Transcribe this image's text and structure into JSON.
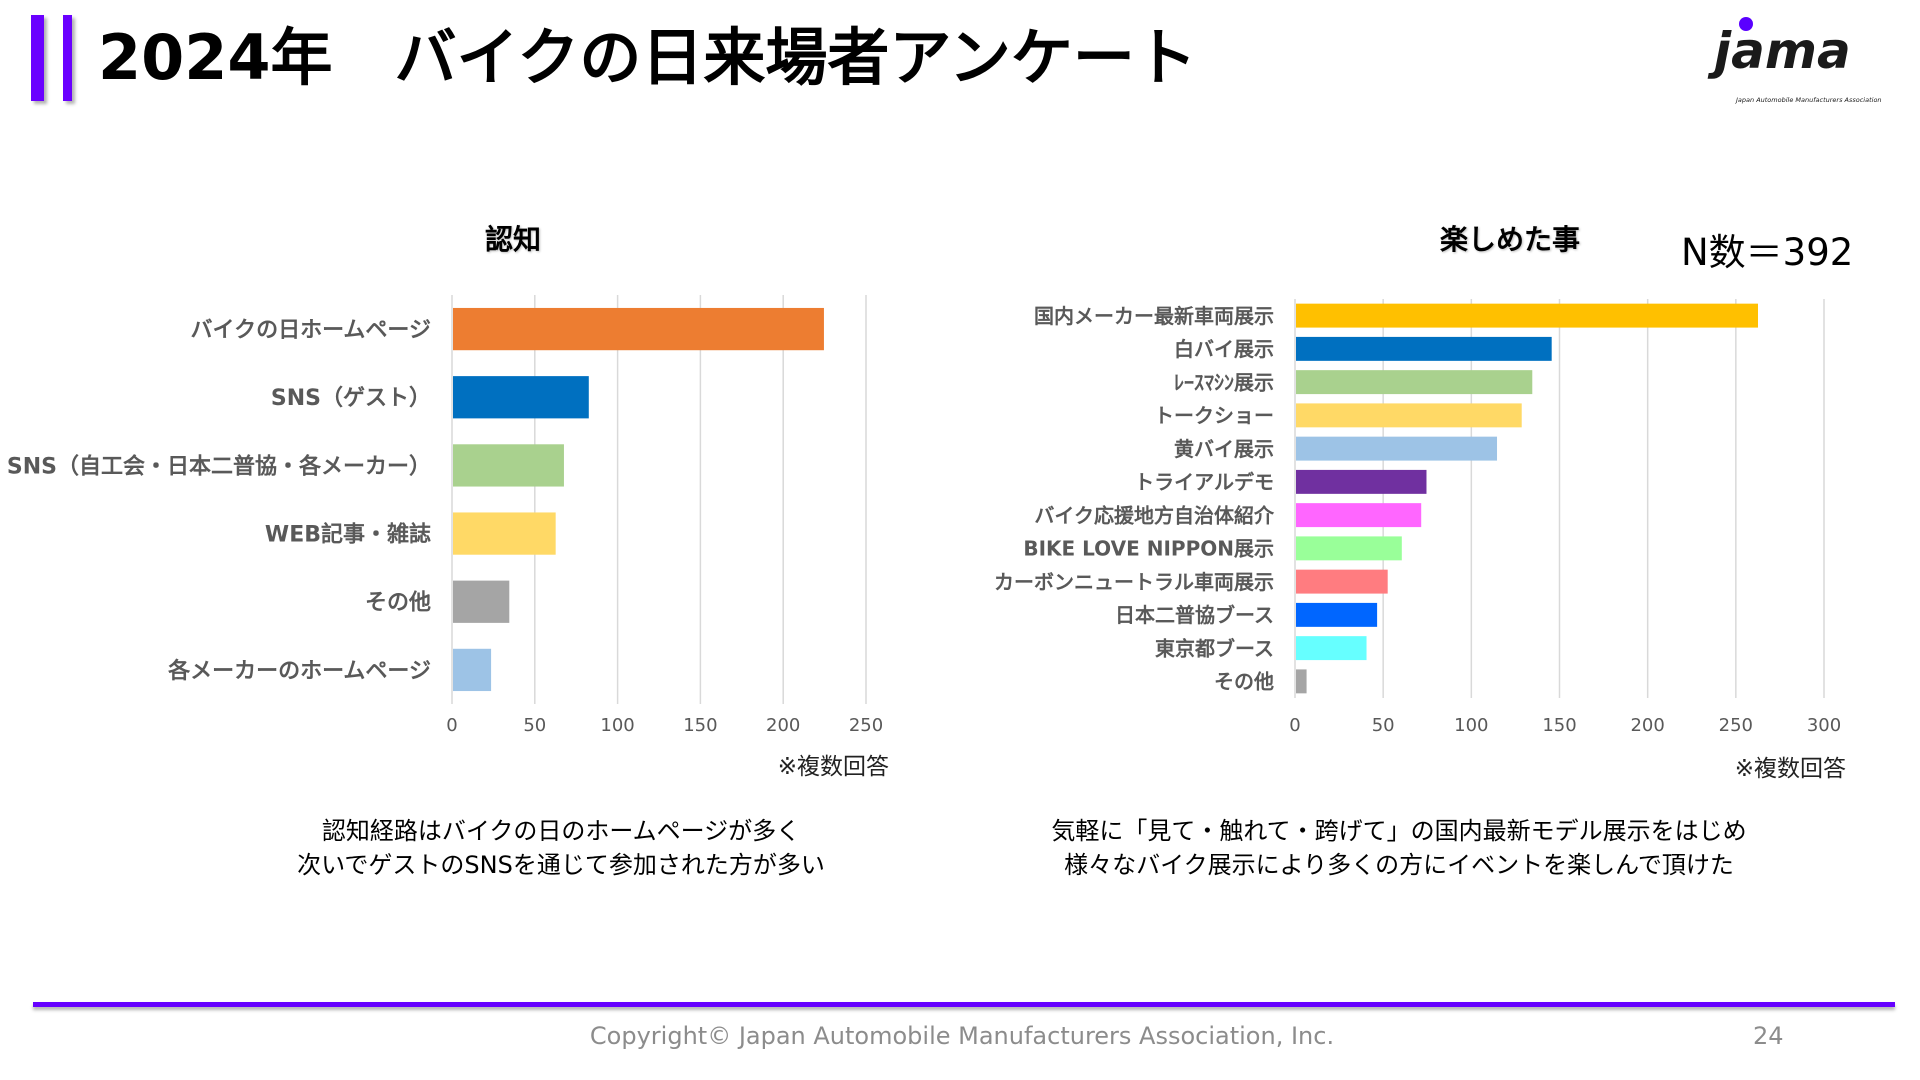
{
  "header": {
    "title": "2024年　バイクの日来場者アンケート",
    "logo_text": "jama",
    "logo_subtext": "Japan Automobile Manufacturers Association",
    "accent_color": "#6a00ff"
  },
  "sample_size": "N数＝392",
  "chart_data": [
    {
      "type": "bar",
      "orientation": "horizontal",
      "title": "認知",
      "categories": [
        "バイクの日ホームページ",
        "SNS（ゲスト）",
        "SNS（自工会・日本二普協・各メーカー）",
        "WEB記事・雑誌",
        "その他",
        "各メーカーのホームページ"
      ],
      "values": [
        224,
        82,
        67,
        62,
        34,
        23
      ],
      "colors": [
        "#ed7d31",
        "#0070c0",
        "#a9d18e",
        "#ffd966",
        "#a5a5a5",
        "#9dc3e6"
      ],
      "xlim": [
        0,
        250
      ],
      "ticks": [
        0,
        50,
        100,
        150,
        200,
        250
      ],
      "grid": true,
      "note": "※複数回答"
    },
    {
      "type": "bar",
      "orientation": "horizontal",
      "title": "楽しめた事",
      "categories": [
        "国内メーカー最新車両展示",
        "白バイ展示",
        "ﾚｰｽﾏｼﾝ展示",
        "トークショー",
        "黄バイ展示",
        "トライアルデモ",
        "バイク応援地方自治体紹介",
        "BIKE LOVE NIPPON展示",
        "カーボンニュートラル車両展示",
        "日本二普協ブース",
        "東京都ブース",
        "その他"
      ],
      "values": [
        262,
        145,
        134,
        128,
        114,
        74,
        71,
        60,
        52,
        46,
        40,
        6
      ],
      "colors": [
        "#ffc000",
        "#0070c0",
        "#a9d18e",
        "#ffd966",
        "#9dc3e6",
        "#7030a0",
        "#ff66ff",
        "#99ff99",
        "#ff7c80",
        "#0066ff",
        "#66ffff",
        "#a5a5a5"
      ],
      "xlim": [
        0,
        300
      ],
      "ticks": [
        0,
        50,
        100,
        150,
        200,
        250,
        300
      ],
      "grid": true,
      "note": "※複数回答"
    }
  ],
  "captions": {
    "left": [
      "認知経路はバイクの日のホームページが多く",
      "次いでゲストのSNSを通じて参加された方が多い"
    ],
    "right": [
      "気軽に「見て・触れて・跨げて」の国内最新モデル展示をはじめ",
      "様々なバイク展示により多くの方にイベントを楽しんで頂けた"
    ]
  },
  "footer": {
    "copyright": "Copyright© Japan Automobile Manufacturers Association, Inc.",
    "page": "24",
    "line_color": "#6600ff"
  }
}
